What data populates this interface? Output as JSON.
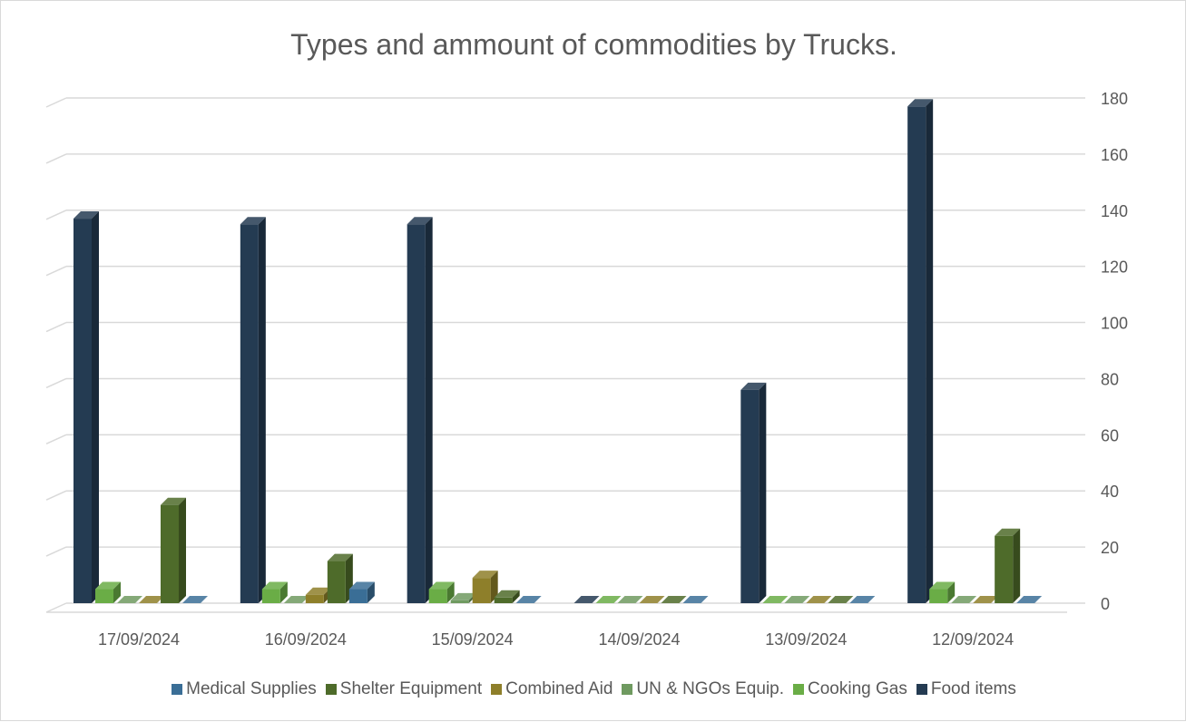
{
  "chart_data": {
    "type": "bar",
    "title": "Types and ammount of commodities by Trucks.",
    "categories": [
      "17/09/2024",
      "16/09/2024",
      "15/09/2024",
      "14/09/2024",
      "13/09/2024",
      "12/09/2024"
    ],
    "series": [
      {
        "name": "Food items",
        "color": "#243b52",
        "values": [
          137,
          135,
          135,
          0,
          76,
          177
        ]
      },
      {
        "name": "Cooking Gas",
        "color": "#6aad46",
        "values": [
          5,
          5,
          5,
          0,
          0,
          5
        ]
      },
      {
        "name": "UN & NGOs Equip.",
        "color": "#6f9a60",
        "values": [
          0,
          0,
          1,
          0,
          0,
          0
        ]
      },
      {
        "name": "Combined Aid",
        "color": "#8e7f2a",
        "values": [
          0,
          3,
          9,
          0,
          0,
          0
        ]
      },
      {
        "name": "Shelter Equipment",
        "color": "#4e6b2a",
        "values": [
          35,
          15,
          2,
          0,
          0,
          24
        ]
      },
      {
        "name": "Medical Supplies",
        "color": "#3a6e96",
        "values": [
          0,
          5,
          0,
          0,
          0,
          0
        ]
      }
    ],
    "legend_order": [
      "Medical Supplies",
      "Shelter Equipment",
      "Combined Aid",
      "UN & NGOs Equip.",
      "Cooking Gas",
      "Food items"
    ],
    "yticks": [
      0,
      20,
      40,
      60,
      80,
      100,
      120,
      140,
      160,
      180
    ],
    "ylim": [
      0,
      180
    ],
    "y_axis_position": "right",
    "grid": true,
    "legend_position": "bottom",
    "style": "3d-clustered-column"
  }
}
